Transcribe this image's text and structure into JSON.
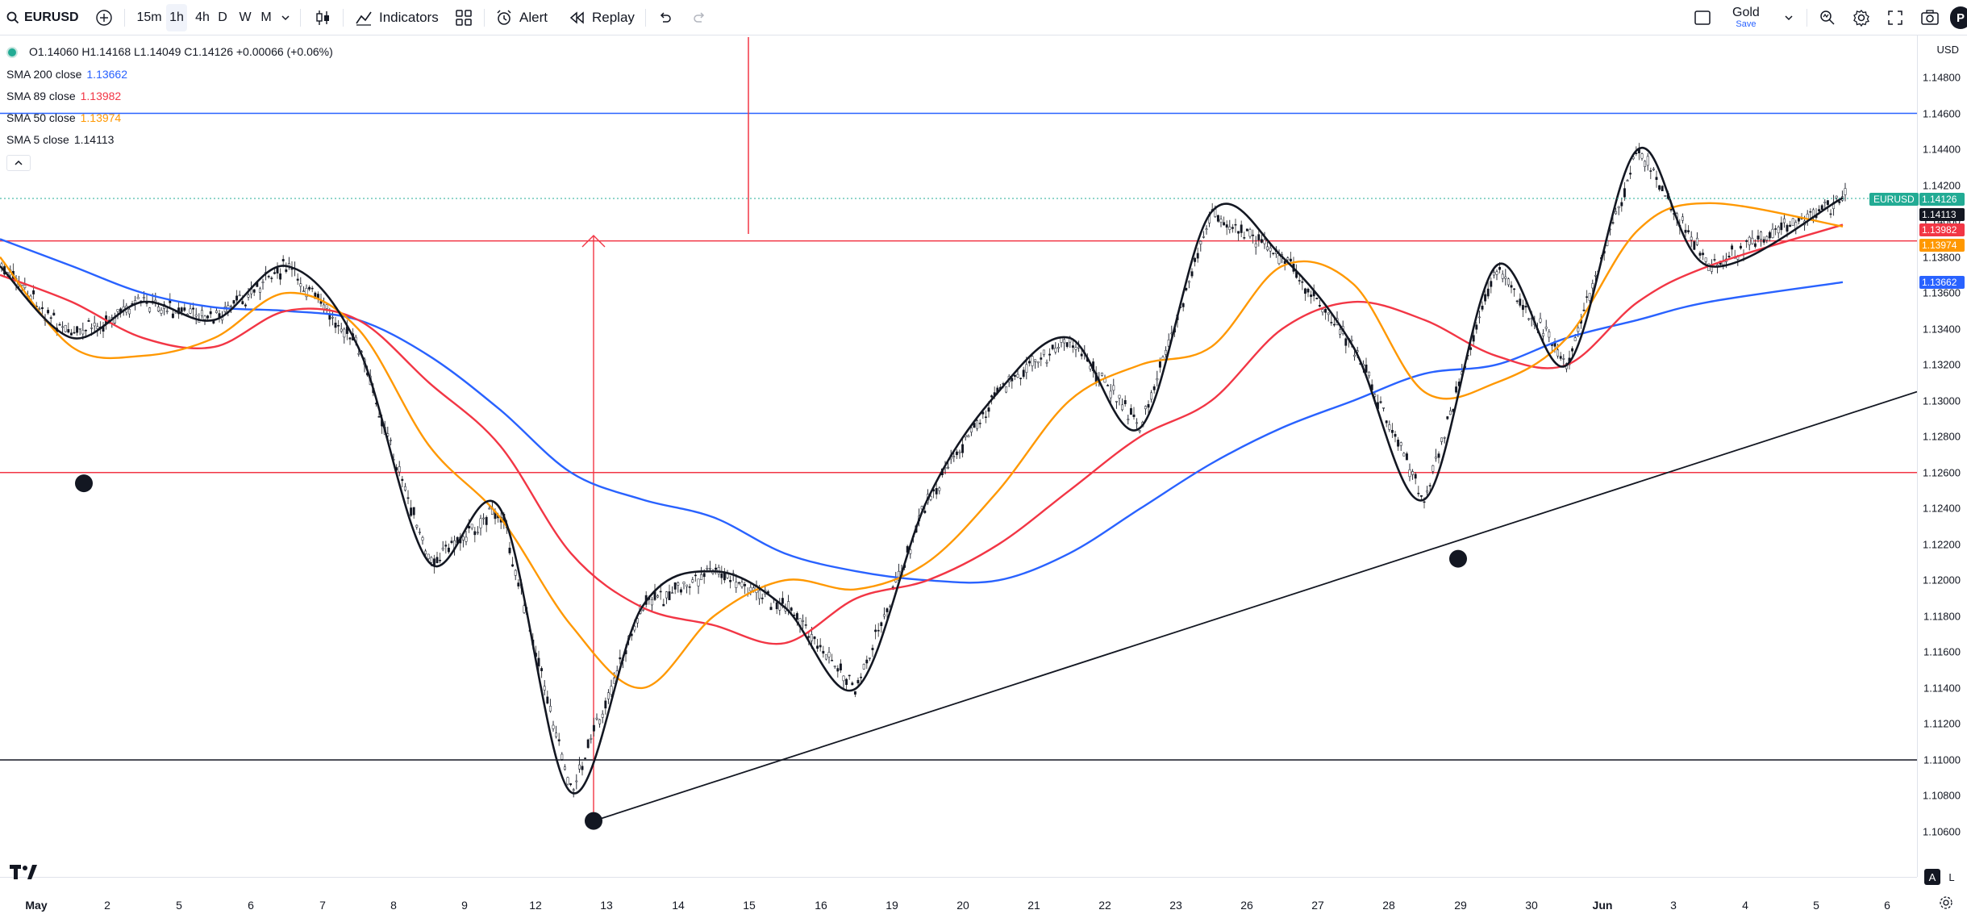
{
  "toolbar": {
    "symbol": "EURUSD",
    "timeframes": [
      "15m",
      "1h",
      "4h",
      "D",
      "W",
      "M"
    ],
    "active_timeframe": "1h",
    "indicators_label": "Indicators",
    "alert_label": "Alert",
    "replay_label": "Replay",
    "plan_label": "Gold",
    "plan_sublabel": "Save",
    "avatar_letter": "P",
    "icons": [
      "search-icon",
      "add-symbol-icon",
      "chevron-down-icon",
      "candles-icon",
      "indicators-icon",
      "templates-icon",
      "alert-icon",
      "replay-icon",
      "undo-icon",
      "redo-icon",
      "layout-icon",
      "quick-search-icon",
      "settings-icon",
      "fullscreen-icon",
      "camera-icon"
    ]
  },
  "legend": {
    "ohlc": "O1.14060 H1.14168 L1.14049 C1.14126 +0.00066 (+0.06%)",
    "indicators": [
      {
        "name": "SMA 200 close",
        "value": "1.13662",
        "color": "#2962ff"
      },
      {
        "name": "SMA 89 close",
        "value": "1.13982",
        "color": "#f23645"
      },
      {
        "name": "SMA 50 close",
        "value": "1.13974",
        "color": "#ff9800"
      },
      {
        "name": "SMA 5 close",
        "value": "1.14113",
        "color": "#131722"
      }
    ]
  },
  "price_axis": {
    "currency": "USD",
    "ticks": [
      "1.14800",
      "1.14600",
      "1.14400",
      "1.14200",
      "1.14000",
      "1.13800",
      "1.13600",
      "1.13400",
      "1.13200",
      "1.13000",
      "1.12800",
      "1.12600",
      "1.12400",
      "1.12200",
      "1.12000",
      "1.11800",
      "1.11600",
      "1.11400",
      "1.11200",
      "1.11000",
      "1.10800",
      "1.10600"
    ],
    "symbol_tag": "EURUSD",
    "price_tags": [
      {
        "label": "1.14126",
        "price": 1.14126,
        "color": "#22ab94"
      },
      {
        "label": "1.14113",
        "price": 1.14113,
        "color": "#131722"
      },
      {
        "label": "1.13982",
        "price": 1.13982,
        "color": "#f23645"
      },
      {
        "label": "1.13974",
        "price": 1.13974,
        "color": "#ff9800"
      },
      {
        "label": "1.13662",
        "price": 1.13662,
        "color": "#2962ff"
      }
    ]
  },
  "time_axis": {
    "labels": [
      "May",
      "2",
      "5",
      "6",
      "7",
      "8",
      "9",
      "12",
      "13",
      "14",
      "15",
      "16",
      "19",
      "20",
      "21",
      "22",
      "23",
      "26",
      "27",
      "28",
      "29",
      "30",
      "Jun",
      "3",
      "4",
      "5",
      "6"
    ]
  },
  "footer": {
    "auto_label": "A",
    "log_label": "L"
  },
  "chart_data": {
    "type": "line",
    "title": "",
    "xlabel": "",
    "ylabel": "",
    "ylim": [
      1.1048,
      1.1491
    ],
    "x": [
      "May",
      "2",
      "5",
      "6",
      "7",
      "8",
      "9",
      "12",
      "13",
      "14",
      "15",
      "16",
      "19",
      "20",
      "21",
      "22",
      "23",
      "26",
      "27",
      "28",
      "29",
      "30",
      "Jun",
      "3",
      "4",
      "5"
    ],
    "series": [
      {
        "name": "SMA 5 close",
        "color": "#131722",
        "values": [
          1.1375,
          1.1335,
          1.1355,
          1.1345,
          1.1375,
          1.133,
          1.121,
          1.124,
          1.1082,
          1.1185,
          1.1205,
          1.1185,
          1.114,
          1.1245,
          1.1305,
          1.1335,
          1.1285,
          1.1405,
          1.138,
          1.133,
          1.1245,
          1.1375,
          1.132,
          1.144,
          1.1375,
          1.1413
        ]
      },
      {
        "name": "SMA 50 close",
        "color": "#ff9800",
        "values": [
          1.138,
          1.133,
          1.1325,
          1.1335,
          1.136,
          1.134,
          1.1275,
          1.1235,
          1.1175,
          1.114,
          1.118,
          1.12,
          1.1195,
          1.121,
          1.125,
          1.13,
          1.132,
          1.133,
          1.1375,
          1.1365,
          1.1305,
          1.131,
          1.1335,
          1.1395,
          1.141,
          1.1397
        ]
      },
      {
        "name": "SMA 89 close",
        "color": "#f23645",
        "values": [
          1.137,
          1.1355,
          1.1335,
          1.133,
          1.135,
          1.1345,
          1.131,
          1.1275,
          1.1215,
          1.1185,
          1.1175,
          1.1165,
          1.119,
          1.12,
          1.122,
          1.125,
          1.128,
          1.13,
          1.134,
          1.1355,
          1.1345,
          1.1325,
          1.132,
          1.1355,
          1.1375,
          1.1398
        ]
      },
      {
        "name": "SMA 200 close",
        "color": "#2962ff",
        "values": [
          1.139,
          1.1375,
          1.136,
          1.1352,
          1.135,
          1.1345,
          1.1325,
          1.1295,
          1.126,
          1.1245,
          1.1235,
          1.1215,
          1.1205,
          1.12,
          1.12,
          1.1215,
          1.124,
          1.1265,
          1.1285,
          1.13,
          1.1315,
          1.132,
          1.1335,
          1.1345,
          1.1355,
          1.1366
        ]
      }
    ],
    "horizontal_lines": [
      {
        "price": 1.146,
        "color": "#2962ff"
      },
      {
        "price": 1.1389,
        "color": "#f23645"
      },
      {
        "price": 1.126,
        "color": "#f23645"
      },
      {
        "price": 1.11,
        "color": "#131722"
      }
    ],
    "trendline": {
      "from": {
        "x": "13",
        "price": 1.1066
      },
      "to": {
        "x": "6",
        "price": 1.1296
      },
      "color": "#131722"
    },
    "pivot_markers": [
      {
        "x": "2",
        "price": 1.1254
      },
      {
        "x": "13",
        "price": 1.1066
      },
      {
        "x": "29",
        "price": 1.1212
      }
    ],
    "grid": false,
    "last_price": 1.14126
  }
}
